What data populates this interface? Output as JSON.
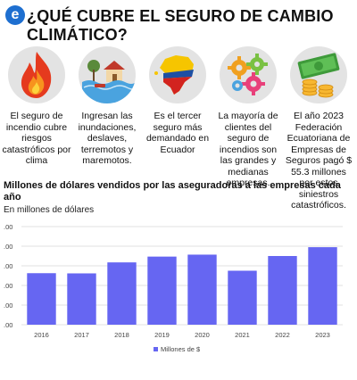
{
  "header": {
    "logo_letter": "e",
    "title": "¿QUÉ CUBRE EL SEGURO DE CAMBIO CLIMÁTICO?"
  },
  "panels": [
    {
      "icon": "fire-icon",
      "text": "El seguro de incendio cubre riesgos catastróficos por clima"
    },
    {
      "icon": "flood-house-icon",
      "text": "Ingresan las inundaciones, deslaves, terremotos y maremotos."
    },
    {
      "icon": "ecuador-map-icon",
      "text": "Es el tercer seguro más demandado en Ecuador"
    },
    {
      "icon": "gears-icon",
      "text": "La mayoría de clientes del seguro de incendios son las grandes y medianas empresas."
    },
    {
      "icon": "money-coins-icon",
      "text": "El año 2023 Federación Ecuatoriana de Empresas de Seguros pagó $ 55.3 millones por estos siniestros catastróficos."
    }
  ],
  "colors": {
    "bar": "#6666f2",
    "logo": "#1e6fd0",
    "grid": "#e2e2e2"
  },
  "chart_data": {
    "type": "bar",
    "title": "Millones de dólares vendidos por las aseguradoras a las empresas cada año",
    "subtitle": "En millones de dólares",
    "categories": [
      "2016",
      "2017",
      "2018",
      "2019",
      "2020",
      "2021",
      "2022",
      "2023"
    ],
    "series": [
      {
        "name": "Millones de $",
        "values": [
          52.5,
          52.3,
          63.5,
          69.4,
          71.4,
          55.0,
          70.0,
          79.0
        ]
      }
    ],
    "y_tick_labels": [
      ".00",
      ".00",
      ".00",
      ".00",
      ".00",
      ".00"
    ],
    "ylim": [
      0,
      100
    ],
    "grid": true,
    "legend": "bottom"
  }
}
